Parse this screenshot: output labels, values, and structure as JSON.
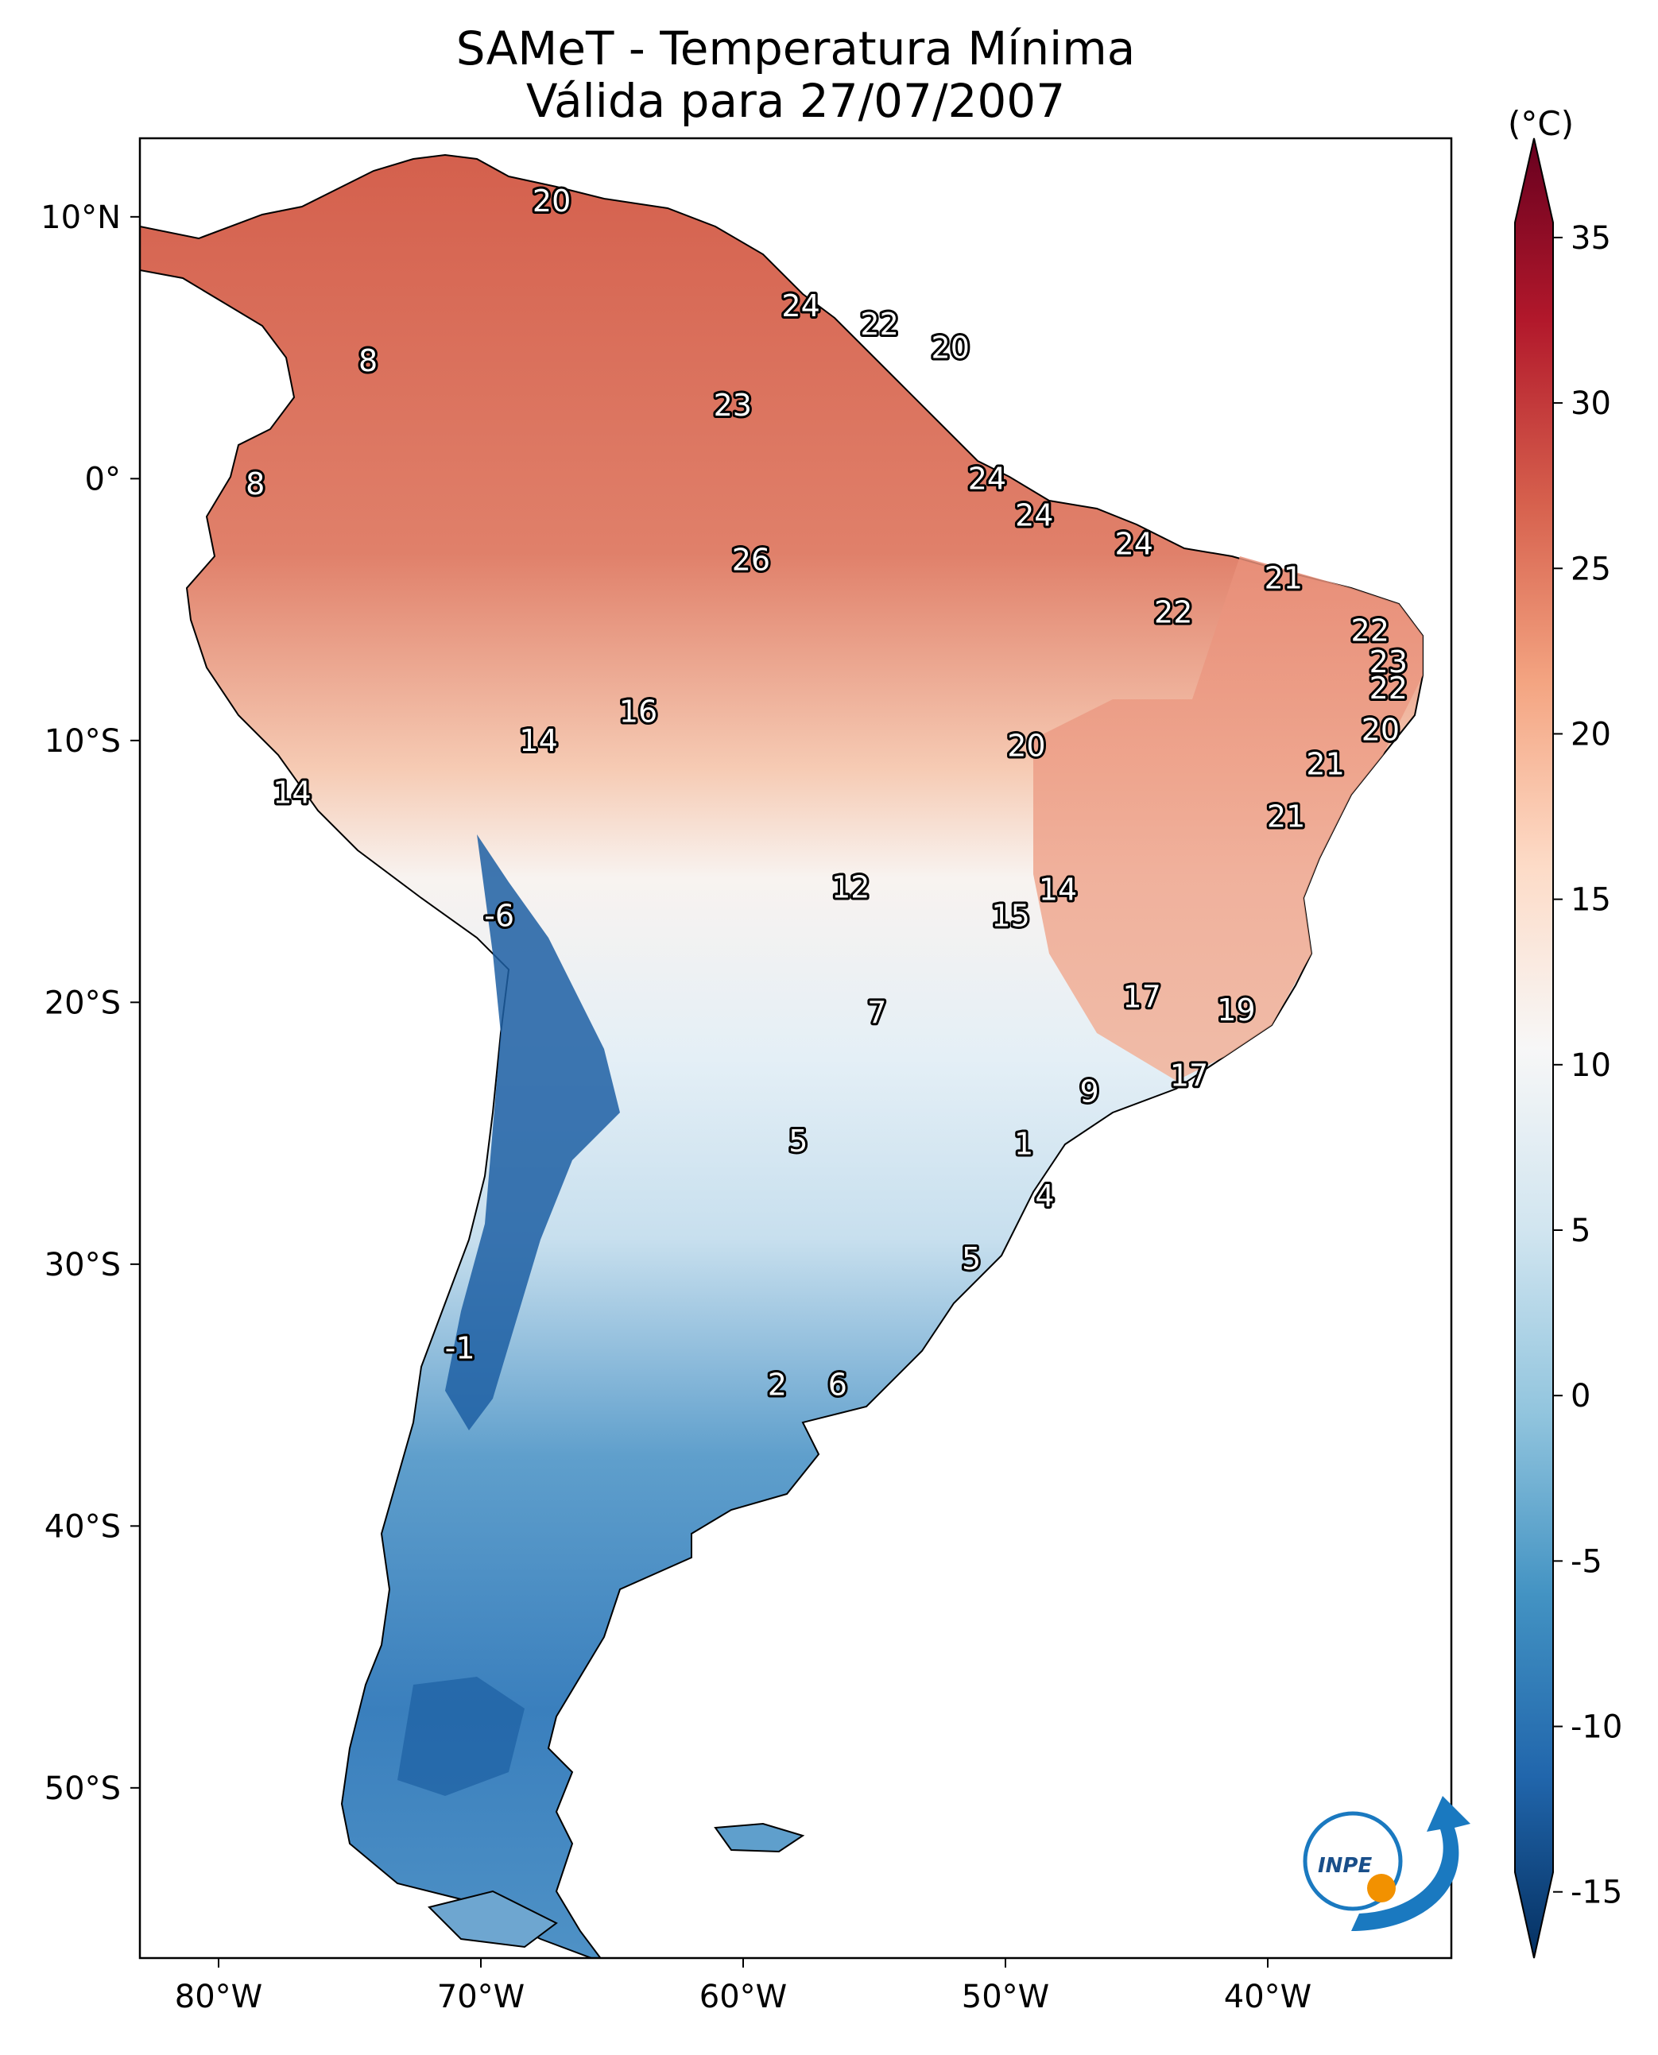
{
  "title": {
    "line1": "SAMeT - Temperatura Mínima",
    "line2": "Válida para 27/07/2007"
  },
  "map": {
    "lon_range": [
      -83,
      -33
    ],
    "lat_range": [
      -56.5,
      13
    ],
    "x_ticks": [
      {
        "lon": -80,
        "label": "80°W"
      },
      {
        "lon": -70,
        "label": "70°W"
      },
      {
        "lon": -60,
        "label": "60°W"
      },
      {
        "lon": -50,
        "label": "50°W"
      },
      {
        "lon": -40,
        "label": "40°W"
      }
    ],
    "y_ticks": [
      {
        "lat": 10,
        "label": "10°N"
      },
      {
        "lat": 0,
        "label": "0°"
      },
      {
        "lat": -10,
        "label": "10°S"
      },
      {
        "lat": -20,
        "label": "20°S"
      },
      {
        "lat": -30,
        "label": "30°S"
      },
      {
        "lat": -40,
        "label": "40°S"
      },
      {
        "lat": -50,
        "label": "50°S"
      }
    ],
    "value_labels": [
      {
        "text": "20",
        "lon": -67.3,
        "lat": 10.6
      },
      {
        "text": "24",
        "lon": -57.8,
        "lat": 6.6
      },
      {
        "text": "22",
        "lon": -54.8,
        "lat": 5.9
      },
      {
        "text": "20",
        "lon": -52.1,
        "lat": 5.0
      },
      {
        "text": "8",
        "lon": -74.3,
        "lat": 4.5
      },
      {
        "text": "23",
        "lon": -60.4,
        "lat": 2.8
      },
      {
        "text": "8",
        "lon": -78.6,
        "lat": -0.2
      },
      {
        "text": "24",
        "lon": -50.7,
        "lat": 0.0
      },
      {
        "text": "24",
        "lon": -48.9,
        "lat": -1.4
      },
      {
        "text": "24",
        "lon": -45.1,
        "lat": -2.5
      },
      {
        "text": "26",
        "lon": -59.7,
        "lat": -3.1
      },
      {
        "text": "21",
        "lon": -39.4,
        "lat": -3.8
      },
      {
        "text": "22",
        "lon": -43.6,
        "lat": -5.1
      },
      {
        "text": "22",
        "lon": -36.1,
        "lat": -5.8
      },
      {
        "text": "23",
        "lon": -35.4,
        "lat": -7.0
      },
      {
        "text": "22",
        "lon": -35.4,
        "lat": -8.0
      },
      {
        "text": "16",
        "lon": -64.0,
        "lat": -8.9
      },
      {
        "text": "20",
        "lon": -35.7,
        "lat": -9.6
      },
      {
        "text": "14",
        "lon": -67.8,
        "lat": -10.0
      },
      {
        "text": "20",
        "lon": -49.2,
        "lat": -10.2
      },
      {
        "text": "21",
        "lon": -37.8,
        "lat": -10.9
      },
      {
        "text": "14",
        "lon": -77.2,
        "lat": -12.0
      },
      {
        "text": "21",
        "lon": -39.3,
        "lat": -12.9
      },
      {
        "text": "12",
        "lon": -55.9,
        "lat": -15.6
      },
      {
        "text": "14",
        "lon": -48.0,
        "lat": -15.7
      },
      {
        "text": "-6",
        "lon": -69.3,
        "lat": -16.7
      },
      {
        "text": "15",
        "lon": -49.8,
        "lat": -16.7
      },
      {
        "text": "17",
        "lon": -44.8,
        "lat": -19.8
      },
      {
        "text": "7",
        "lon": -54.9,
        "lat": -20.4
      },
      {
        "text": "19",
        "lon": -41.2,
        "lat": -20.3
      },
      {
        "text": "17",
        "lon": -43.0,
        "lat": -22.8
      },
      {
        "text": "9",
        "lon": -46.8,
        "lat": -23.4
      },
      {
        "text": "5",
        "lon": -57.9,
        "lat": -25.3
      },
      {
        "text": "1",
        "lon": -49.3,
        "lat": -25.4
      },
      {
        "text": "4",
        "lon": -48.5,
        "lat": -27.4
      },
      {
        "text": "5",
        "lon": -51.3,
        "lat": -29.8
      },
      {
        "text": "-1",
        "lon": -70.8,
        "lat": -33.2
      },
      {
        "text": "2",
        "lon": -58.7,
        "lat": -34.6
      },
      {
        "text": "6",
        "lon": -56.4,
        "lat": -34.6
      }
    ]
  },
  "colorbar": {
    "unit": "(°C)",
    "range": [
      -17,
      38
    ],
    "tick_values": [
      35,
      30,
      25,
      20,
      15,
      10,
      5,
      0,
      -5,
      -10,
      -15
    ],
    "tick_labels": [
      "35",
      "30",
      "25",
      "20",
      "15",
      "10",
      "5",
      "0",
      "-5",
      "-10",
      "-15"
    ],
    "stops": [
      "#053061",
      "#2166ac",
      "#4393c3",
      "#92c5de",
      "#d1e5f0",
      "#f7f7f7",
      "#fddbc7",
      "#f4a582",
      "#d6604d",
      "#b2182b",
      "#67001f"
    ]
  },
  "logo": {
    "text": "INPE",
    "colors": {
      "ring": "#1a79c0",
      "dot": "#f29100"
    }
  }
}
